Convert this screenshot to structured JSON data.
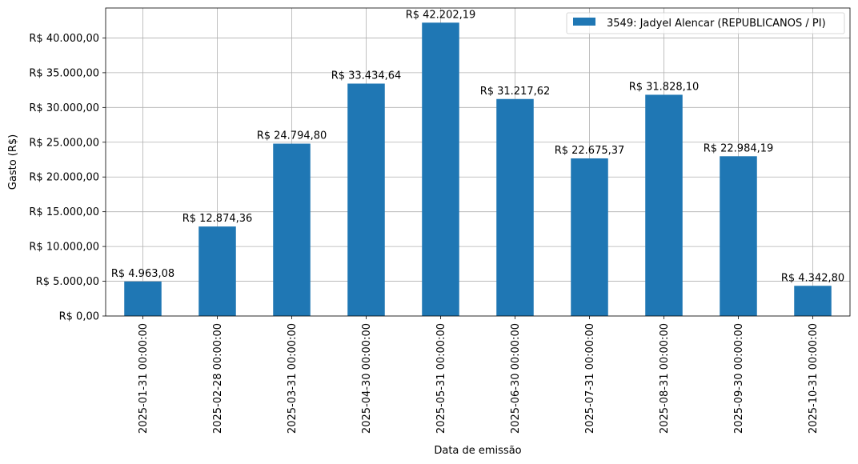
{
  "chart_data": {
    "type": "bar",
    "title": "",
    "xlabel": "Data de emissão",
    "ylabel": "Gasto (R$)",
    "ylim": [
      0,
      44310
    ],
    "grid": true,
    "legend_position": "top-right",
    "series": [
      {
        "name": "3549: Jadyel Alencar (REPUBLICANOS / PI)",
        "color": "#1f77b4",
        "values": [
          4963.08,
          12874.36,
          24794.8,
          33434.64,
          42202.19,
          31217.62,
          22675.37,
          31828.1,
          22984.19,
          4342.8
        ]
      }
    ],
    "categories": [
      "2025-01-31 00:00:00",
      "2025-02-28 00:00:00",
      "2025-03-31 00:00:00",
      "2025-04-30 00:00:00",
      "2025-05-31 00:00:00",
      "2025-06-30 00:00:00",
      "2025-07-31 00:00:00",
      "2025-08-31 00:00:00",
      "2025-09-30 00:00:00",
      "2025-10-31 00:00:00"
    ],
    "data_labels": [
      "R$ 4.963,08",
      "R$ 12.874,36",
      "R$ 24.794,80",
      "R$ 33.434,64",
      "R$ 42.202,19",
      "R$ 31.217,62",
      "R$ 22.675,37",
      "R$ 31.828,10",
      "R$ 22.984,19",
      "R$ 4.342,80"
    ],
    "y_ticks": [
      0,
      5000,
      10000,
      15000,
      20000,
      25000,
      30000,
      35000,
      40000
    ],
    "y_tick_labels": [
      "R$ 0,00",
      "R$ 5.000,00",
      "R$ 10.000,00",
      "R$ 15.000,00",
      "R$ 20.000,00",
      "R$ 25.000,00",
      "R$ 30.000,00",
      "R$ 35.000,00",
      "R$ 40.000,00"
    ]
  }
}
